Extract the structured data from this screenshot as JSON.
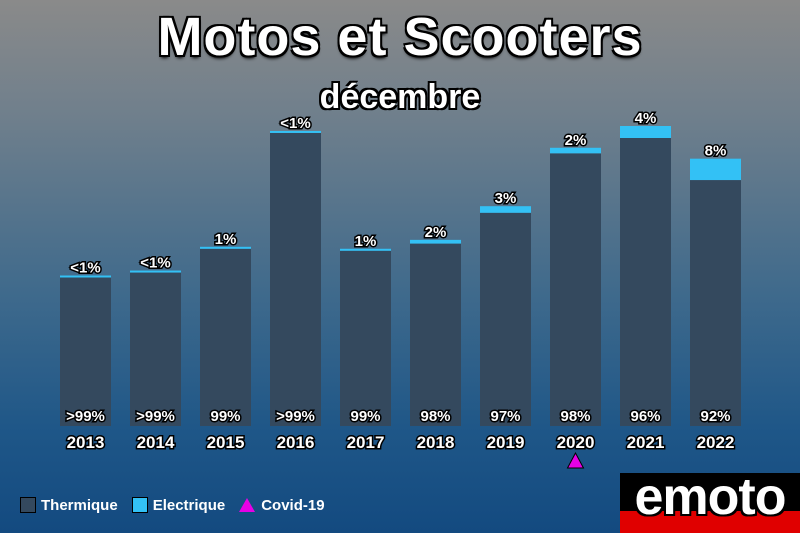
{
  "chart_data": {
    "type": "bar",
    "stacked": true,
    "title": "Motos et Scooters",
    "subtitle": "décembre",
    "categories": [
      "2013",
      "2014",
      "2015",
      "2016",
      "2017",
      "2018",
      "2019",
      "2020",
      "2021",
      "2022"
    ],
    "total_values": [
      152,
      157,
      181,
      298,
      179,
      188,
      222,
      281,
      303,
      270
    ],
    "series": [
      {
        "name": "Thermique",
        "color": "#34495e",
        "labels": [
          ">99%",
          ">99%",
          "99%",
          ">99%",
          "99%",
          "98%",
          "97%",
          "98%",
          "96%",
          "92%"
        ]
      },
      {
        "name": "Electrique",
        "color": "#33c1f5",
        "values_pct": [
          0.5,
          0.5,
          1,
          0.5,
          1,
          2,
          3,
          2,
          4,
          8
        ],
        "labels": [
          "<1%",
          "<1%",
          "1%",
          "<1%",
          "1%",
          "2%",
          "3%",
          "2%",
          "4%",
          "8%"
        ]
      }
    ],
    "annotations": [
      {
        "category": "2020",
        "marker": "triangle",
        "color": "#e600e6",
        "label": "Covid-19"
      }
    ],
    "legend_position": "bottom-left",
    "grid": false
  },
  "legend": {
    "items": [
      {
        "label": "Thermique",
        "color": "#34495e"
      },
      {
        "label": "Electrique",
        "color": "#33c1f5"
      },
      {
        "label": "Covid-19",
        "color": "#e600e6"
      }
    ]
  },
  "logo": {
    "text": "emoto"
  }
}
